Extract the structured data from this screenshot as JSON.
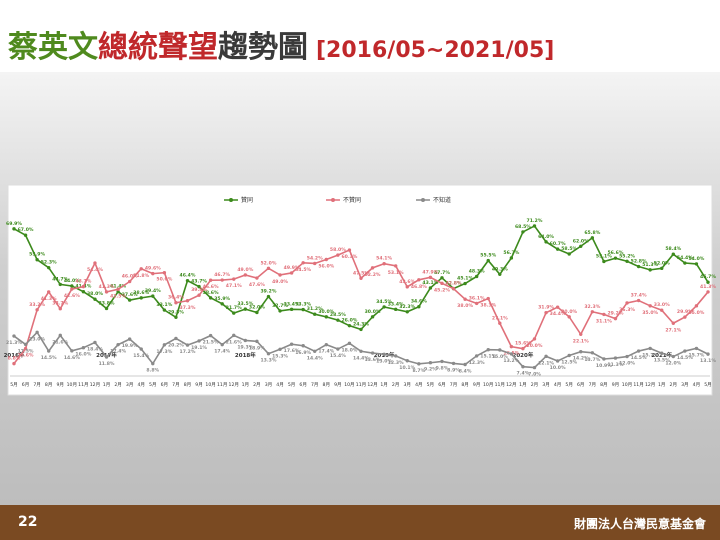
{
  "title_parts": [
    "蔡英文",
    "總統聲望",
    "趨勢圖"
  ],
  "subtitle": "[2016/05~2021/05]",
  "footer": {
    "page": "22",
    "organization": "財團法人台灣民意基金會"
  },
  "chart_data": {
    "type": "line",
    "categories": [
      "5月",
      "6月",
      "7月",
      "8月",
      "9月",
      "10月",
      "11月",
      "12月",
      "1月",
      "2月",
      "3月",
      "4月",
      "5月",
      "6月",
      "7月",
      "8月",
      "9月",
      "10月",
      "11月",
      "12月",
      "1月",
      "2月",
      "3月",
      "4月",
      "5月",
      "6月",
      "7月",
      "8月",
      "9月",
      "10月",
      "11月",
      "12月",
      "1月",
      "2月",
      "3月",
      "4月",
      "5月",
      "6月",
      "7月",
      "8月",
      "9月",
      "10月",
      "11月",
      "12月",
      "1月",
      "2月",
      "3月",
      "4月",
      "5月",
      "6月",
      "7月",
      "8月",
      "9月",
      "10月",
      "11月",
      "12月",
      "1月",
      "2月",
      "3月",
      "4月",
      "5月"
    ],
    "year_labels": [
      "2016年",
      null,
      null,
      null,
      null,
      null,
      null,
      null,
      "2017年",
      null,
      null,
      null,
      null,
      null,
      null,
      null,
      null,
      null,
      null,
      null,
      "2018年",
      null,
      null,
      null,
      null,
      null,
      null,
      null,
      null,
      null,
      null,
      null,
      "2019年",
      null,
      null,
      null,
      null,
      null,
      null,
      null,
      null,
      null,
      null,
      null,
      "2020年",
      null,
      null,
      null,
      null,
      null,
      null,
      null,
      null,
      null,
      null,
      null,
      "2021年",
      null,
      null,
      null,
      null
    ],
    "ylim": [
      5,
      73
    ],
    "series": [
      {
        "name": "贊同",
        "color": "#3c8a1c",
        "values": [
          69.9,
          67.0,
          55.9,
          52.3,
          44.7,
          44.0,
          41.4,
          38.0,
          33.8,
          41.4,
          37.6,
          38.6,
          39.4,
          33.1,
          29.8,
          46.4,
          43.7,
          38.6,
          35.9,
          31.7,
          33.5,
          32.0,
          39.2,
          32.7,
          33.4,
          33.3,
          31.2,
          30.0,
          28.5,
          26.0,
          24.3,
          30.0,
          34.5,
          33.4,
          32.3,
          34.6,
          43.1,
          47.7,
          42.8,
          45.1,
          48.3,
          55.5,
          49.3,
          56.7,
          68.5,
          71.2,
          64.0,
          60.7,
          58.5,
          62.0,
          65.8,
          55.1,
          56.6,
          55.2,
          52.8,
          51.3,
          52.0,
          58.4,
          54.4,
          54.0,
          45.7
        ],
        "value_labels": [
          "69.9%",
          "67.0%",
          "55.9%",
          "52.3%",
          "44.7%",
          "44.0%",
          "41.4%",
          "38.0%",
          "33.8%",
          "41.4%",
          "37.6%",
          "38.6%",
          "39.4%",
          "33.1%",
          "29.8%",
          "46.4%",
          "43.7%",
          "38.6%",
          "35.9%",
          "31.7%",
          "33.5%",
          "32.0%",
          "39.2%",
          "32.7%",
          "33.4%",
          "33.3%",
          "31.2%",
          "30.0%",
          "28.5%",
          "26.0%",
          "24.3%",
          "30.0%",
          "34.5%",
          "33.4%",
          "32.3%",
          "34.6%",
          "43.1%",
          "47.7%",
          "42.8%",
          "45.1%",
          "48.3%",
          "55.5%",
          "49.3%",
          "56.7%",
          "68.5%",
          "71.2%",
          "64.0%",
          "60.7%",
          "58.5%",
          "62.0%",
          "65.8%",
          "55.1%",
          "56.6%",
          "55.2%",
          "52.8%",
          "51.3%",
          "52.0%",
          "58.4%",
          "54.4%",
          "54.0%",
          "45.7%"
        ]
      },
      {
        "name": "不贊同",
        "color": "#e0707a",
        "values": [
          8.8,
          15.6,
          33.2,
          41.3,
          33.7,
          42.6,
          43.7,
          54.4,
          41.3,
          42.5,
          46.0,
          51.8,
          49.6,
          50.0,
          36.4,
          37.3,
          39.8,
          46.6,
          46.7,
          47.1,
          49.0,
          47.6,
          52.0,
          49.0,
          49.9,
          54.5,
          54.2,
          56.0,
          58.0,
          60.3,
          47.5,
          52.2,
          54.1,
          53.1,
          43.6,
          46.8,
          47.9,
          45.2,
          42.8,
          38.0,
          36.1,
          38.3,
          27.1,
          16.5,
          15.6,
          20.0,
          31.9,
          34.4,
          30.0,
          22.1,
          32.3,
          31.1,
          29.2,
          36.3,
          37.4,
          35.0,
          33.0,
          27.1,
          29.9,
          35.0,
          41.3
        ],
        "value_labels": [
          "8.8%",
          "15.6%",
          "33.2%",
          "41.3%",
          "33.7%",
          "42.6%",
          "43.7%",
          "54.4%",
          "41.3%",
          "42.5%",
          "46.0%",
          "51.8%",
          "49.6%",
          "50.0%",
          "36.4%",
          "37.3%",
          "39.8%",
          "46.6%",
          "46.7%",
          "47.1%",
          "49.0%",
          "47.6%",
          "52.0%",
          "49.0%",
          "49.9%",
          "54.5%",
          "54.2%",
          "56.0%",
          "58.0%",
          "60.3%",
          "47.5%",
          "52.2%",
          "54.1%",
          "53.1%",
          "43.6%",
          "46.8%",
          "47.9%",
          "45.2%",
          "42.8%",
          "38.0%",
          "36.1%",
          "38.3%",
          "27.1%",
          "16.5%",
          "15.6%",
          "20.0%",
          "31.9%",
          "34.4%",
          "30.0%",
          "22.1%",
          "32.3%",
          "31.1%",
          "29.2%",
          "36.3%",
          "37.4%",
          "35.0%",
          "33.0%",
          "27.1%",
          "29.9%",
          "35.0%",
          "41.3%"
        ]
      },
      {
        "name": "不知道",
        "color": "#8a8a8a",
        "values": [
          21.3,
          17.5,
          23.0,
          14.5,
          21.6,
          14.6,
          16.0,
          18.4,
          11.8,
          17.4,
          19.9,
          15.4,
          8.8,
          17.3,
          20.2,
          17.2,
          19.1,
          21.5,
          17.4,
          21.6,
          19.3,
          18.9,
          13.3,
          15.3,
          17.6,
          16.9,
          14.4,
          17.4,
          15.4,
          18.0,
          14.4,
          13.6,
          13.0,
          12.3,
          10.1,
          8.7,
          9.2,
          9.8,
          8.9,
          8.4,
          12.3,
          15.1,
          15.0,
          13.2,
          7.4,
          7.0,
          12.1,
          10.0,
          12.5,
          14.2,
          13.7,
          10.9,
          11.3,
          12.0,
          14.5,
          15.7,
          13.5,
          12.0,
          14.5,
          15.7,
          13.1
        ],
        "value_labels": [
          "21.3%",
          "17.5%",
          "23.0%",
          "14.5%",
          "21.6%",
          "14.6%",
          "16.0%",
          "18.4%",
          "11.8%",
          "17.4%",
          "19.9%",
          "15.4%",
          "8.8%",
          "17.3%",
          "20.2%",
          "17.2%",
          "19.1%",
          "21.5%",
          "17.4%",
          "21.6%",
          "19.3%",
          "18.9%",
          "13.3%",
          "15.3%",
          "17.6%",
          "16.9%",
          "14.4%",
          "17.4%",
          "15.4%",
          "18.0%",
          "14.4%",
          "13.6%",
          "13.0%",
          "12.3%",
          "10.1%",
          "8.7%",
          "9.2%",
          "9.8%",
          "8.9%",
          "8.4%",
          "12.3%",
          "15.1%",
          "15.0%",
          "13.2%",
          "7.4%",
          "7.0%",
          "12.1%",
          "10.0%",
          "12.5%",
          "14.2%",
          "13.7%",
          "10.9%",
          "11.3%",
          "12.0%",
          "14.5%",
          "15.7%",
          "13.5%",
          "12.0%",
          "14.5%",
          "15.7%",
          "13.1%"
        ]
      }
    ],
    "legend": "top"
  }
}
